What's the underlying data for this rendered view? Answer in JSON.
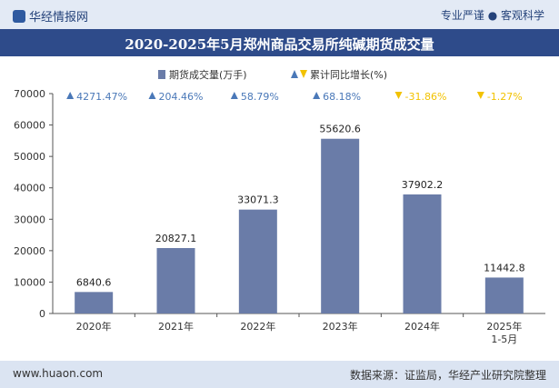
{
  "header": {
    "brand": "华经情报网",
    "slogan": "专业严谨 ● 客观科学"
  },
  "footer": {
    "website": "www.huaon.com",
    "source": "数据来源：证监局，华经产业研究院整理"
  },
  "colors": {
    "bar": "#6a7ca8",
    "growth_up": "#4a78b8",
    "growth_down": "#f2c200"
  },
  "chart_data": {
    "type": "bar",
    "title": "2020-2025年5月郑州商品交易所纯碱期货成交量",
    "categories": [
      "2020年",
      "2021年",
      "2022年",
      "2023年",
      "2024年",
      "2025年\n1-5月"
    ],
    "series": [
      {
        "name": "期货成交量(万手)",
        "values": [
          6840.6,
          20827.1,
          33071.3,
          55620.6,
          37902.2,
          11442.8
        ],
        "labels": [
          "6840.6",
          "20827.1",
          "33071.3",
          "55620.6",
          "37902.2",
          "11442.8"
        ]
      },
      {
        "name": "累计同比增长(%)",
        "values": [
          4271.47,
          204.46,
          58.79,
          68.18,
          -31.86,
          -1.27
        ],
        "labels": [
          "4271.47%",
          "204.46%",
          "58.79%",
          "68.18%",
          "-31.86%",
          "-1.27%"
        ]
      }
    ],
    "ylim": [
      0,
      70000
    ],
    "yticks": [
      "0",
      "10000",
      "20000",
      "30000",
      "40000",
      "50000",
      "60000",
      "70000"
    ],
    "legend": "top-center",
    "grid": false
  }
}
